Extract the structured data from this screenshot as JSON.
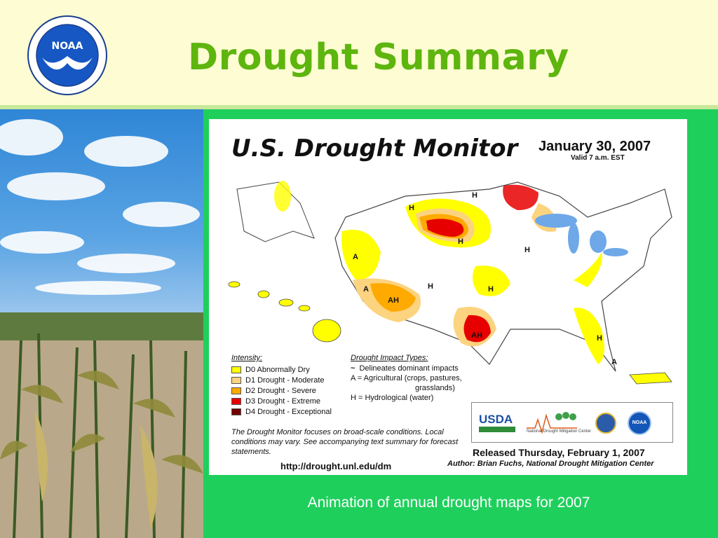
{
  "slide": {
    "title": "Drought Summary",
    "caption": "Animation of annual drought maps for 2007",
    "logo_label": "NOAA"
  },
  "monitor": {
    "title": "U.S. Drought Monitor",
    "date": "January 30, 2007",
    "valid": "Valid 7 a.m. EST",
    "intensity_heading": "Intensity:",
    "intensity": [
      {
        "label": "D0 Abnormally Dry",
        "color": "#ffff00"
      },
      {
        "label": "D1 Drought - Moderate",
        "color": "#fcd37f"
      },
      {
        "label": "D2 Drought - Severe",
        "color": "#ffaa00"
      },
      {
        "label": "D3 Drought - Extreme",
        "color": "#e60000"
      },
      {
        "label": "D4 Drought - Exceptional",
        "color": "#730000"
      }
    ],
    "impact_heading": "Drought Impact Types:",
    "impact_lines": [
      "Delineates dominant impacts",
      "A = Agricultural (crops, pastures,",
      "grasslands)",
      "H = Hydrological (water)"
    ],
    "note": "The Drought Monitor focuses on broad-scale conditions. Local conditions may vary. See accompanying text summary for forecast statements.",
    "url": "http://drought.unl.edu/dm",
    "released": "Released Thursday, February 1, 2007",
    "author": "Author: Brian Fuchs, National Drought Mitigation Center",
    "usda": "USDA",
    "ndmc": "National Drought Mitigation Center",
    "noaa_seal": "NOAA",
    "map_labels": [
      "H",
      "H",
      "H",
      "A",
      "A",
      "AH",
      "H",
      "H",
      "AH",
      "H",
      "H",
      "A"
    ]
  }
}
